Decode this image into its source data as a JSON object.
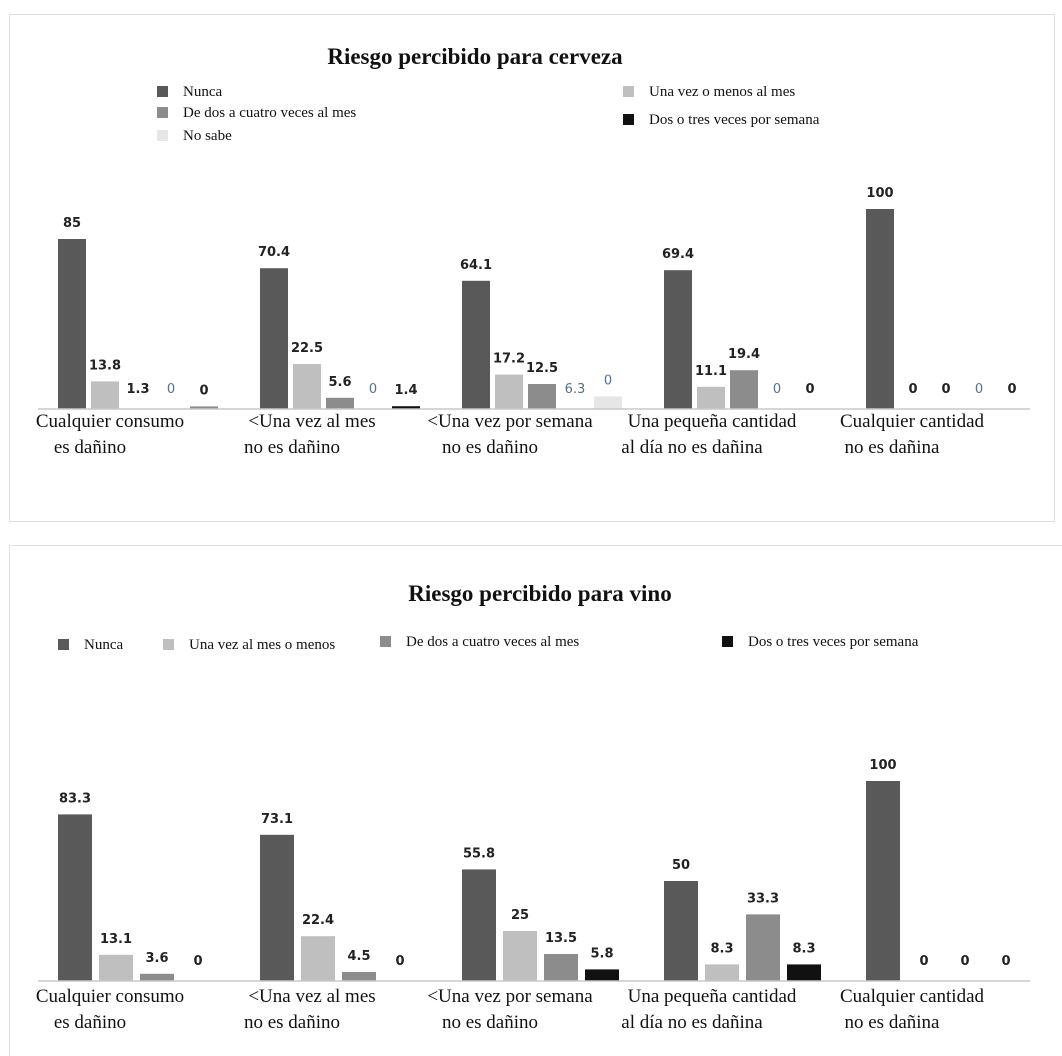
{
  "chart_data": [
    {
      "type": "bar",
      "title": "Riesgo percibido para cerveza",
      "categories": [
        [
          "Cualquier consumo",
          "es dañino"
        ],
        [
          "<Una vez al mes",
          "no es dañino"
        ],
        [
          "<Una vez por semana",
          "no es dañino"
        ],
        [
          "Una pequeña cantidad",
          "al día no es dañina"
        ],
        [
          "Cualquier cantidad",
          "no es dañina"
        ]
      ],
      "series": [
        {
          "name": "Nunca",
          "color": "#595959",
          "values": [
            85,
            70.4,
            64.1,
            69.4,
            100
          ]
        },
        {
          "name": "Una vez o menos al mes",
          "color": "#bfbfbf",
          "values": [
            13.8,
            22.5,
            17.2,
            11.1,
            0
          ]
        },
        {
          "name": "De dos a cuatro veces al mes",
          "color": "#8c8c8c",
          "values": [
            1.3,
            5.6,
            12.5,
            19.4,
            0
          ]
        },
        {
          "name": "No sabe",
          "color": "#e6e6e6",
          "values": [
            0,
            0,
            6.3,
            0,
            0
          ]
        },
        {
          "name": "Dos o tres veces por semana",
          "color": "#111111",
          "values": [
            0,
            1.4,
            0,
            0,
            0
          ]
        }
      ],
      "bar_series_map": [
        [
          0,
          1,
          4,
          3,
          2
        ],
        [
          0,
          1,
          2,
          3,
          4
        ],
        [
          0,
          1,
          2,
          4,
          3
        ],
        [
          0,
          1,
          2,
          3,
          4
        ],
        [
          0,
          1,
          2,
          3,
          4
        ]
      ],
      "label_texts": [
        [
          "85",
          "13.8",
          "1.3",
          "0",
          "0"
        ],
        [
          "70.4",
          "22.5",
          "5.6",
          "0",
          "1.4"
        ],
        [
          "64.1",
          "17.2",
          "12.5",
          "6.3",
          "0"
        ],
        [
          "69.4",
          "11.1",
          "19.4",
          "0",
          "0"
        ],
        [
          "100",
          "0",
          "0",
          "0",
          "0"
        ]
      ],
      "ylim": [
        0,
        100
      ]
    },
    {
      "type": "bar",
      "title": "Riesgo percibido para vino",
      "categories": [
        [
          "Cualquier consumo",
          "es dañino"
        ],
        [
          "<Una vez al mes",
          "no es dañino"
        ],
        [
          "<Una vez por semana",
          "no es dañino"
        ],
        [
          "Una pequeña cantidad",
          "al día no es dañina"
        ],
        [
          "Cualquier cantidad",
          "no es dañina"
        ]
      ],
      "series": [
        {
          "name": "Nunca",
          "color": "#595959",
          "values": [
            83.3,
            73.1,
            55.8,
            50,
            100
          ]
        },
        {
          "name": "Una vez al mes o menos",
          "color": "#bfbfbf",
          "values": [
            13.1,
            22.4,
            25,
            8.3,
            0
          ]
        },
        {
          "name": "De dos a cuatro veces al mes",
          "color": "#8c8c8c",
          "values": [
            3.6,
            4.5,
            13.5,
            33.3,
            0
          ]
        },
        {
          "name": "Dos o tres veces por semana",
          "color": "#111111",
          "values": [
            0,
            0,
            5.8,
            8.3,
            0
          ]
        }
      ],
      "label_texts": [
        [
          "83.3",
          "13.1",
          "3.6",
          "0"
        ],
        [
          "73.1",
          "22.4",
          "4.5",
          "0"
        ],
        [
          "55.8",
          "25",
          "13.5",
          "5.8"
        ],
        [
          "50",
          "8.3",
          "33.3",
          "8.3"
        ],
        [
          "100",
          "0",
          "0",
          "0"
        ]
      ],
      "ylim": [
        0,
        100
      ]
    }
  ]
}
